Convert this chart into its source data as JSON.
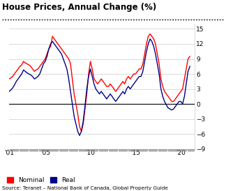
{
  "title": "House Prices, Annual Change (%)",
  "source": "Source: Teranet – National Bank of Canada, Global Property Guide",
  "xlim": [
    2001.0,
    2021.5
  ],
  "ylim": [
    -9,
    16
  ],
  "yticks": [
    -9,
    -6,
    -3,
    0,
    3,
    6,
    9,
    12,
    15
  ],
  "xtick_labels": [
    "'01",
    "'05",
    "'10",
    "'15",
    "'20"
  ],
  "xtick_positions": [
    2001,
    2005,
    2010,
    2015,
    2020
  ],
  "nominal_color": "#ff0000",
  "real_color": "#00008b",
  "background_color": "#ffffff",
  "nominal_data": [
    [
      2001.0,
      5.0
    ],
    [
      2001.2,
      5.2
    ],
    [
      2001.4,
      5.5
    ],
    [
      2001.6,
      6.0
    ],
    [
      2001.8,
      6.5
    ],
    [
      2002.0,
      7.0
    ],
    [
      2002.2,
      7.5
    ],
    [
      2002.4,
      7.8
    ],
    [
      2002.6,
      8.5
    ],
    [
      2002.8,
      8.2
    ],
    [
      2003.0,
      8.0
    ],
    [
      2003.2,
      7.8
    ],
    [
      2003.4,
      7.5
    ],
    [
      2003.6,
      7.0
    ],
    [
      2003.8,
      6.5
    ],
    [
      2004.0,
      6.8
    ],
    [
      2004.2,
      7.0
    ],
    [
      2004.4,
      7.5
    ],
    [
      2004.6,
      8.0
    ],
    [
      2004.8,
      8.5
    ],
    [
      2005.0,
      9.0
    ],
    [
      2005.2,
      10.0
    ],
    [
      2005.4,
      11.0
    ],
    [
      2005.6,
      11.5
    ],
    [
      2005.8,
      13.5
    ],
    [
      2006.0,
      13.0
    ],
    [
      2006.2,
      12.5
    ],
    [
      2006.4,
      12.0
    ],
    [
      2006.6,
      11.5
    ],
    [
      2006.8,
      11.0
    ],
    [
      2007.0,
      10.5
    ],
    [
      2007.2,
      10.0
    ],
    [
      2007.4,
      9.5
    ],
    [
      2007.6,
      9.0
    ],
    [
      2007.8,
      8.0
    ],
    [
      2008.0,
      5.0
    ],
    [
      2008.2,
      2.0
    ],
    [
      2008.4,
      0.0
    ],
    [
      2008.6,
      -2.0
    ],
    [
      2008.8,
      -4.5
    ],
    [
      2009.0,
      -5.5
    ],
    [
      2009.2,
      -4.0
    ],
    [
      2009.4,
      -1.0
    ],
    [
      2009.6,
      2.0
    ],
    [
      2009.8,
      6.0
    ],
    [
      2010.0,
      8.5
    ],
    [
      2010.2,
      7.0
    ],
    [
      2010.4,
      5.0
    ],
    [
      2010.6,
      4.5
    ],
    [
      2010.8,
      4.0
    ],
    [
      2011.0,
      4.5
    ],
    [
      2011.2,
      5.0
    ],
    [
      2011.4,
      4.5
    ],
    [
      2011.6,
      4.0
    ],
    [
      2011.8,
      3.5
    ],
    [
      2012.0,
      3.5
    ],
    [
      2012.2,
      4.0
    ],
    [
      2012.4,
      3.5
    ],
    [
      2012.6,
      3.0
    ],
    [
      2012.8,
      2.5
    ],
    [
      2013.0,
      3.0
    ],
    [
      2013.2,
      3.5
    ],
    [
      2013.4,
      4.0
    ],
    [
      2013.6,
      4.5
    ],
    [
      2013.8,
      4.0
    ],
    [
      2014.0,
      5.0
    ],
    [
      2014.2,
      5.5
    ],
    [
      2014.4,
      5.0
    ],
    [
      2014.6,
      5.5
    ],
    [
      2014.8,
      6.0
    ],
    [
      2015.0,
      6.0
    ],
    [
      2015.2,
      6.5
    ],
    [
      2015.4,
      7.0
    ],
    [
      2015.6,
      7.0
    ],
    [
      2015.8,
      8.0
    ],
    [
      2016.0,
      10.0
    ],
    [
      2016.2,
      12.0
    ],
    [
      2016.4,
      13.5
    ],
    [
      2016.6,
      14.0
    ],
    [
      2016.8,
      13.5
    ],
    [
      2017.0,
      13.0
    ],
    [
      2017.2,
      12.0
    ],
    [
      2017.4,
      10.0
    ],
    [
      2017.6,
      8.0
    ],
    [
      2017.8,
      5.0
    ],
    [
      2018.0,
      3.5
    ],
    [
      2018.2,
      2.5
    ],
    [
      2018.4,
      2.0
    ],
    [
      2018.6,
      1.5
    ],
    [
      2018.8,
      1.0
    ],
    [
      2019.0,
      0.5
    ],
    [
      2019.2,
      0.5
    ],
    [
      2019.4,
      1.0
    ],
    [
      2019.6,
      1.5
    ],
    [
      2019.8,
      2.0
    ],
    [
      2020.0,
      2.5
    ],
    [
      2020.2,
      3.0
    ],
    [
      2020.4,
      5.0
    ],
    [
      2020.6,
      7.0
    ],
    [
      2020.8,
      9.0
    ],
    [
      2021.0,
      9.5
    ]
  ],
  "real_data": [
    [
      2001.0,
      2.5
    ],
    [
      2001.2,
      2.8
    ],
    [
      2001.4,
      3.2
    ],
    [
      2001.6,
      3.8
    ],
    [
      2001.8,
      4.5
    ],
    [
      2002.0,
      5.0
    ],
    [
      2002.2,
      5.5
    ],
    [
      2002.4,
      6.0
    ],
    [
      2002.6,
      6.8
    ],
    [
      2002.8,
      6.5
    ],
    [
      2003.0,
      6.2
    ],
    [
      2003.2,
      6.0
    ],
    [
      2003.4,
      5.8
    ],
    [
      2003.6,
      5.5
    ],
    [
      2003.8,
      5.0
    ],
    [
      2004.0,
      5.2
    ],
    [
      2004.2,
      5.5
    ],
    [
      2004.4,
      6.0
    ],
    [
      2004.6,
      7.0
    ],
    [
      2004.8,
      8.0
    ],
    [
      2005.0,
      8.5
    ],
    [
      2005.2,
      9.5
    ],
    [
      2005.4,
      11.0
    ],
    [
      2005.6,
      12.0
    ],
    [
      2005.8,
      12.5
    ],
    [
      2006.0,
      12.0
    ],
    [
      2006.2,
      11.5
    ],
    [
      2006.4,
      11.0
    ],
    [
      2006.6,
      10.5
    ],
    [
      2006.8,
      10.0
    ],
    [
      2007.0,
      9.0
    ],
    [
      2007.2,
      8.0
    ],
    [
      2007.4,
      7.0
    ],
    [
      2007.6,
      5.0
    ],
    [
      2007.8,
      2.5
    ],
    [
      2008.0,
      0.0
    ],
    [
      2008.2,
      -2.5
    ],
    [
      2008.4,
      -4.0
    ],
    [
      2008.6,
      -5.5
    ],
    [
      2008.8,
      -6.3
    ],
    [
      2009.0,
      -5.5
    ],
    [
      2009.2,
      -3.5
    ],
    [
      2009.4,
      -0.5
    ],
    [
      2009.6,
      3.0
    ],
    [
      2009.8,
      5.5
    ],
    [
      2010.0,
      7.0
    ],
    [
      2010.2,
      5.5
    ],
    [
      2010.4,
      4.0
    ],
    [
      2010.6,
      3.0
    ],
    [
      2010.8,
      2.5
    ],
    [
      2011.0,
      2.0
    ],
    [
      2011.2,
      2.5
    ],
    [
      2011.4,
      2.0
    ],
    [
      2011.6,
      1.5
    ],
    [
      2011.8,
      1.0
    ],
    [
      2012.0,
      1.5
    ],
    [
      2012.2,
      2.0
    ],
    [
      2012.4,
      1.5
    ],
    [
      2012.6,
      1.0
    ],
    [
      2012.8,
      0.5
    ],
    [
      2013.0,
      1.0
    ],
    [
      2013.2,
      1.5
    ],
    [
      2013.4,
      2.0
    ],
    [
      2013.6,
      2.5
    ],
    [
      2013.8,
      2.0
    ],
    [
      2014.0,
      3.0
    ],
    [
      2014.2,
      3.5
    ],
    [
      2014.4,
      3.0
    ],
    [
      2014.6,
      3.5
    ],
    [
      2014.8,
      4.0
    ],
    [
      2015.0,
      4.5
    ],
    [
      2015.2,
      5.0
    ],
    [
      2015.4,
      5.5
    ],
    [
      2015.6,
      5.5
    ],
    [
      2015.8,
      6.5
    ],
    [
      2016.0,
      8.5
    ],
    [
      2016.2,
      10.5
    ],
    [
      2016.4,
      12.0
    ],
    [
      2016.6,
      13.0
    ],
    [
      2016.8,
      12.5
    ],
    [
      2017.0,
      11.5
    ],
    [
      2017.2,
      10.0
    ],
    [
      2017.4,
      8.0
    ],
    [
      2017.6,
      6.0
    ],
    [
      2017.8,
      3.0
    ],
    [
      2018.0,
      1.5
    ],
    [
      2018.2,
      0.5
    ],
    [
      2018.4,
      -0.2
    ],
    [
      2018.6,
      -0.8
    ],
    [
      2018.8,
      -1.0
    ],
    [
      2019.0,
      -1.2
    ],
    [
      2019.2,
      -1.0
    ],
    [
      2019.4,
      -0.5
    ],
    [
      2019.6,
      0.0
    ],
    [
      2019.8,
      0.5
    ],
    [
      2020.0,
      0.5
    ],
    [
      2020.2,
      0.0
    ],
    [
      2020.4,
      1.5
    ],
    [
      2020.6,
      4.0
    ],
    [
      2020.8,
      6.5
    ],
    [
      2021.0,
      7.5
    ]
  ]
}
